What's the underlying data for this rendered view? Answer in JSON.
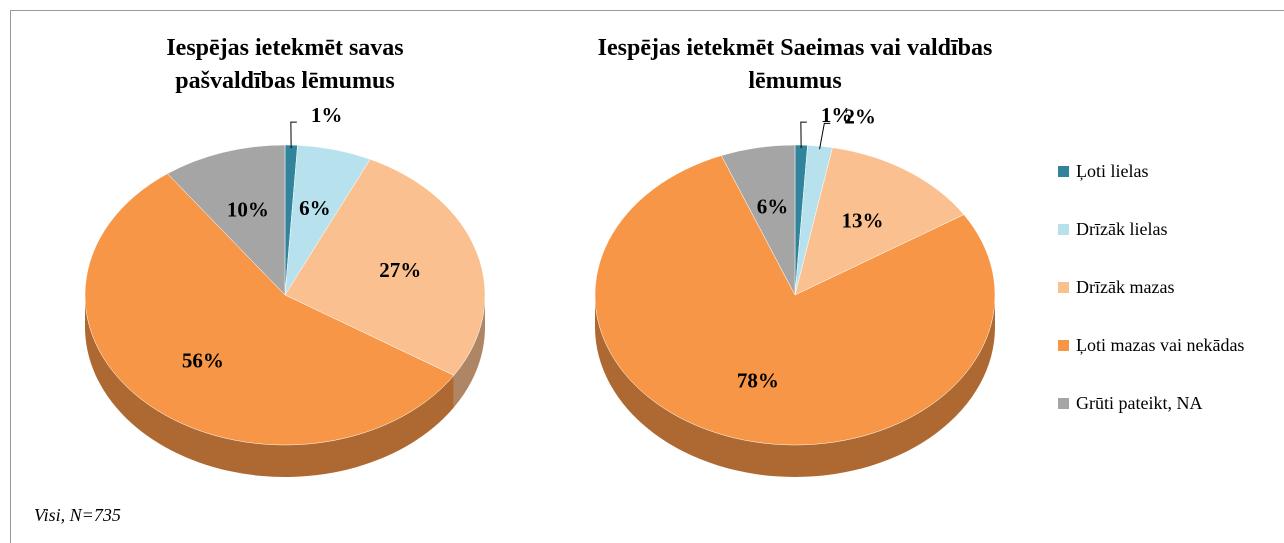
{
  "categories": [
    "Ļoti lielas",
    "Drīzāk lielas",
    "Drīzāk mazas",
    "Ļoti mazas vai nekādas",
    "Grūti pateikt, NA"
  ],
  "colors": [
    "#31849b",
    "#b7e1ec",
    "#fac090",
    "#f79646",
    "#a5a5a5"
  ],
  "note": "Visi, N=735",
  "chart_data": [
    {
      "type": "pie",
      "title": [
        "Iespējas ietekmēt savas",
        "pašvaldības lēmumus"
      ],
      "values": [
        1,
        6,
        27,
        56,
        10
      ],
      "value_labels": [
        "1%",
        "6%",
        "27%",
        "56%",
        "10%"
      ]
    },
    {
      "type": "pie",
      "title": [
        "Iespējas ietekmēt Saeimas vai valdības",
        "lēmumus"
      ],
      "values": [
        1,
        2,
        13,
        78,
        6
      ],
      "value_labels": [
        "1%",
        "2%",
        "13%",
        "78%",
        "6%"
      ]
    }
  ]
}
